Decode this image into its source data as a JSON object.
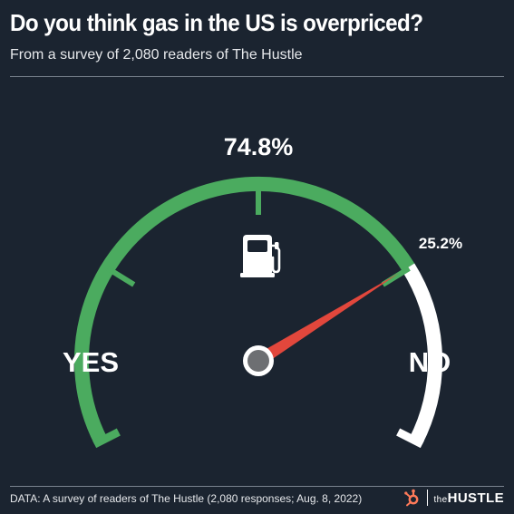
{
  "header": {
    "title": "Do you think gas in the US is overpriced?",
    "subtitle": "From a survey of 2,080 readers of The Hustle"
  },
  "chart_data": {
    "type": "gauge",
    "categories": [
      "YES",
      "NO"
    ],
    "values": [
      74.8,
      25.2
    ],
    "value_labels": [
      "74.8%",
      "25.2%"
    ],
    "unit": "%",
    "range": [
      0,
      100
    ],
    "colors": {
      "yes": "#4bab5f",
      "no": "#ffffff",
      "needle": "#e2473c",
      "background": "#1b2430"
    },
    "center_icon": "gas-pump-icon"
  },
  "footer": {
    "source": "DATA: A survey of readers of The Hustle (2,080 responses; Aug. 8, 2022)",
    "logo_small": "the",
    "logo_big": "HUSTLE",
    "logo_icon": "hubspot-sprocket-icon"
  }
}
